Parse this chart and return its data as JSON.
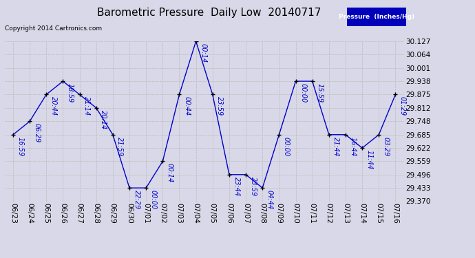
{
  "title": "Barometric Pressure  Daily Low  20140717",
  "copyright": "Copyright 2014 Cartronics.com",
  "legend_label": "Pressure  (Inches/Hg)",
  "x_labels": [
    "06/23",
    "06/24",
    "06/25",
    "06/26",
    "06/27",
    "06/28",
    "06/29",
    "06/30",
    "07/01",
    "07/02",
    "07/03",
    "07/04",
    "07/05",
    "07/06",
    "07/07",
    "07/08",
    "07/09",
    "07/10",
    "07/11",
    "07/12",
    "07/13",
    "07/14",
    "07/15",
    "07/16"
  ],
  "y_values": [
    29.685,
    29.748,
    29.875,
    29.938,
    29.875,
    29.812,
    29.685,
    29.433,
    29.433,
    29.559,
    29.875,
    30.127,
    29.875,
    29.496,
    29.496,
    29.433,
    29.685,
    29.938,
    29.938,
    29.685,
    29.685,
    29.622,
    29.685,
    29.875
  ],
  "point_labels": [
    "16:59",
    "06:29",
    "20:44",
    "18:59",
    "21:14",
    "20:14",
    "21:59",
    "22:29",
    "00:00",
    "00:14",
    "00:44",
    "00:14",
    "23:59",
    "23:44",
    "23:59",
    "04:44",
    "00:00",
    "00:00",
    "15:59",
    "21:44",
    "16:44",
    "11:44",
    "03:29",
    "01:29"
  ],
  "ylim_min": 29.37,
  "ylim_max": 30.127,
  "y_ticks": [
    29.37,
    29.433,
    29.496,
    29.559,
    29.622,
    29.685,
    29.748,
    29.812,
    29.875,
    29.938,
    30.001,
    30.064,
    30.127
  ],
  "line_color": "#0000cc",
  "marker_color": "#000000",
  "bg_color": "#d8d8e8",
  "grid_color": "#bbbbbb",
  "title_color": "#000000",
  "legend_bg": "#0000bb",
  "legend_text_color": "#ffffff",
  "point_label_color": "#0000cc",
  "title_fontsize": 11,
  "tick_fontsize": 7.5,
  "label_fontsize": 7
}
